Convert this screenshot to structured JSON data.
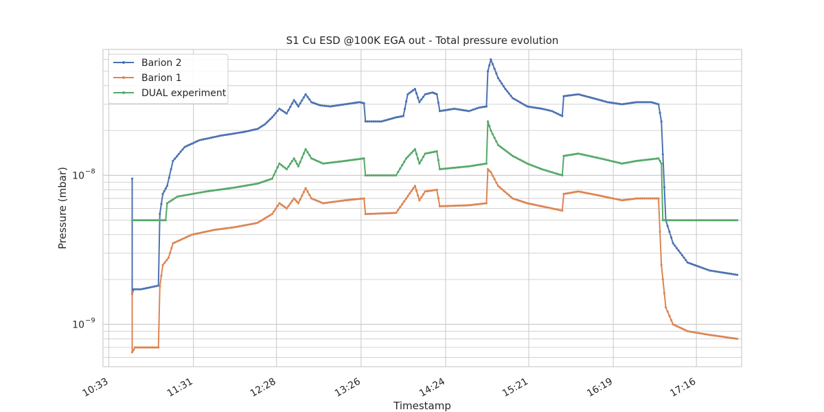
{
  "chart_data": {
    "type": "line",
    "title": "S1 Cu ESD @100K EGA out - Total pressure evolution",
    "xlabel": "Timestamp",
    "ylabel": "Pressure (mbar)",
    "yscale": "log",
    "ylim": [
      5.2e-10,
      7e-08
    ],
    "xlim": [
      "10:29",
      "17:47"
    ],
    "grid": true,
    "legend_position": "top-left",
    "x_ticks": [
      "10:33",
      "11:31",
      "12:28",
      "13:26",
      "14:24",
      "15:21",
      "16:19",
      "17:16"
    ],
    "y_ticks": [
      {
        "value": 1e-09,
        "base": "10",
        "exp": "−9"
      },
      {
        "value": 1e-08,
        "base": "10",
        "exp": "−8"
      }
    ],
    "series": [
      {
        "name": "Barion 2",
        "color": "#4c72b0",
        "points": [
          [
            "10:49",
            9.5e-09
          ],
          [
            "10:49",
            1.6e-09
          ],
          [
            "10:50",
            1.72e-09
          ],
          [
            "10:55",
            1.72e-09
          ],
          [
            "11:00",
            1.76e-09
          ],
          [
            "11:07",
            1.82e-09
          ],
          [
            "11:08",
            5.5e-09
          ],
          [
            "11:10",
            7.5e-09
          ],
          [
            "11:13",
            8.5e-09
          ],
          [
            "11:17",
            1.25e-08
          ],
          [
            "11:25",
            1.55e-08
          ],
          [
            "11:35",
            1.72e-08
          ],
          [
            "11:50",
            1.85e-08
          ],
          [
            "12:05",
            1.95e-08
          ],
          [
            "12:15",
            2.05e-08
          ],
          [
            "12:20",
            2.2e-08
          ],
          [
            "12:25",
            2.45e-08
          ],
          [
            "12:30",
            2.8e-08
          ],
          [
            "12:35",
            2.6e-08
          ],
          [
            "12:40",
            3.2e-08
          ],
          [
            "12:43",
            2.9e-08
          ],
          [
            "12:48",
            3.5e-08
          ],
          [
            "12:52",
            3.1e-08
          ],
          [
            "12:58",
            2.95e-08
          ],
          [
            "13:05",
            2.9e-08
          ],
          [
            "13:15",
            3e-08
          ],
          [
            "13:25",
            3.1e-08
          ],
          [
            "13:28",
            3.05e-08
          ],
          [
            "13:29",
            2.3e-08
          ],
          [
            "13:40",
            2.3e-08
          ],
          [
            "13:50",
            2.45e-08
          ],
          [
            "13:55",
            2.5e-08
          ],
          [
            "13:58",
            3.5e-08
          ],
          [
            "14:03",
            3.8e-08
          ],
          [
            "14:06",
            3.1e-08
          ],
          [
            "14:10",
            3.5e-08
          ],
          [
            "14:15",
            3.6e-08
          ],
          [
            "14:18",
            3.5e-08
          ],
          [
            "14:20",
            2.7e-08
          ],
          [
            "14:30",
            2.8e-08
          ],
          [
            "14:40",
            2.7e-08
          ],
          [
            "14:47",
            2.85e-08
          ],
          [
            "14:52",
            2.9e-08
          ],
          [
            "14:53",
            5e-08
          ],
          [
            "14:55",
            6e-08
          ],
          [
            "15:00",
            4.5e-08
          ],
          [
            "15:05",
            3.8e-08
          ],
          [
            "15:10",
            3.3e-08
          ],
          [
            "15:20",
            2.9e-08
          ],
          [
            "15:30",
            2.8e-08
          ],
          [
            "15:37",
            2.7e-08
          ],
          [
            "15:44",
            2.5e-08
          ],
          [
            "15:45",
            3.4e-08
          ],
          [
            "15:55",
            3.5e-08
          ],
          [
            "16:05",
            3.3e-08
          ],
          [
            "16:15",
            3.1e-08
          ],
          [
            "16:25",
            3e-08
          ],
          [
            "16:35",
            3.1e-08
          ],
          [
            "16:45",
            3.1e-08
          ],
          [
            "16:50",
            3e-08
          ],
          [
            "16:52",
            2.3e-08
          ],
          [
            "16:55",
            5e-09
          ],
          [
            "17:00",
            3.5e-09
          ],
          [
            "17:10",
            2.6e-09
          ],
          [
            "17:25",
            2.3e-09
          ],
          [
            "17:44",
            2.15e-09
          ]
        ]
      },
      {
        "name": "Barion 1",
        "color": "#dd8452",
        "points": [
          [
            "10:49",
            1.65e-09
          ],
          [
            "10:49",
            6.5e-10
          ],
          [
            "10:51",
            7e-10
          ],
          [
            "11:07",
            7e-10
          ],
          [
            "11:08",
            1.8e-09
          ],
          [
            "11:10",
            2.5e-09
          ],
          [
            "11:14",
            2.8e-09
          ],
          [
            "11:17",
            3.5e-09
          ],
          [
            "11:30",
            4e-09
          ],
          [
            "11:45",
            4.3e-09
          ],
          [
            "12:00",
            4.5e-09
          ],
          [
            "12:15",
            4.8e-09
          ],
          [
            "12:25",
            5.5e-09
          ],
          [
            "12:30",
            6.5e-09
          ],
          [
            "12:35",
            6e-09
          ],
          [
            "12:40",
            7e-09
          ],
          [
            "12:43",
            6.5e-09
          ],
          [
            "12:48",
            8.2e-09
          ],
          [
            "12:52",
            7e-09
          ],
          [
            "13:00",
            6.5e-09
          ],
          [
            "13:15",
            6.8e-09
          ],
          [
            "13:28",
            7e-09
          ],
          [
            "13:29",
            5.5e-09
          ],
          [
            "13:50",
            5.6e-09
          ],
          [
            "13:57",
            7e-09
          ],
          [
            "14:03",
            8.5e-09
          ],
          [
            "14:06",
            6.8e-09
          ],
          [
            "14:10",
            7.8e-09
          ],
          [
            "14:18",
            8e-09
          ],
          [
            "14:20",
            6.2e-09
          ],
          [
            "14:40",
            6.3e-09
          ],
          [
            "14:52",
            6.5e-09
          ],
          [
            "14:53",
            1.1e-08
          ],
          [
            "14:55",
            1.05e-08
          ],
          [
            "15:00",
            8.5e-09
          ],
          [
            "15:10",
            7e-09
          ],
          [
            "15:20",
            6.5e-09
          ],
          [
            "15:30",
            6.2e-09
          ],
          [
            "15:44",
            5.8e-09
          ],
          [
            "15:45",
            7.5e-09
          ],
          [
            "15:55",
            7.8e-09
          ],
          [
            "16:10",
            7.3e-09
          ],
          [
            "16:25",
            6.8e-09
          ],
          [
            "16:35",
            7e-09
          ],
          [
            "16:50",
            7e-09
          ],
          [
            "16:52",
            2.5e-09
          ],
          [
            "16:55",
            1.3e-09
          ],
          [
            "17:00",
            1e-09
          ],
          [
            "17:10",
            9e-10
          ],
          [
            "17:25",
            8.5e-10
          ],
          [
            "17:44",
            8e-10
          ]
        ]
      },
      {
        "name": "DUAL experiment",
        "color": "#55a868",
        "points": [
          [
            "10:49",
            5e-09
          ],
          [
            "11:12",
            5e-09
          ],
          [
            "11:13",
            6.5e-09
          ],
          [
            "11:20",
            7.2e-09
          ],
          [
            "11:40",
            7.8e-09
          ],
          [
            "12:00",
            8.3e-09
          ],
          [
            "12:15",
            8.8e-09
          ],
          [
            "12:25",
            9.5e-09
          ],
          [
            "12:30",
            1.2e-08
          ],
          [
            "12:35",
            1.1e-08
          ],
          [
            "12:40",
            1.3e-08
          ],
          [
            "12:43",
            1.15e-08
          ],
          [
            "12:48",
            1.5e-08
          ],
          [
            "12:52",
            1.3e-08
          ],
          [
            "13:00",
            1.2e-08
          ],
          [
            "13:15",
            1.25e-08
          ],
          [
            "13:28",
            1.3e-08
          ],
          [
            "13:29",
            1e-08
          ],
          [
            "13:50",
            1e-08
          ],
          [
            "13:57",
            1.3e-08
          ],
          [
            "14:03",
            1.5e-08
          ],
          [
            "14:06",
            1.2e-08
          ],
          [
            "14:10",
            1.4e-08
          ],
          [
            "14:18",
            1.45e-08
          ],
          [
            "14:20",
            1.1e-08
          ],
          [
            "14:40",
            1.15e-08
          ],
          [
            "14:52",
            1.2e-08
          ],
          [
            "14:53",
            2.3e-08
          ],
          [
            "14:55",
            2e-08
          ],
          [
            "15:00",
            1.6e-08
          ],
          [
            "15:10",
            1.35e-08
          ],
          [
            "15:20",
            1.2e-08
          ],
          [
            "15:30",
            1.1e-08
          ],
          [
            "15:44",
            1e-08
          ],
          [
            "15:45",
            1.35e-08
          ],
          [
            "15:55",
            1.4e-08
          ],
          [
            "16:10",
            1.3e-08
          ],
          [
            "16:25",
            1.2e-08
          ],
          [
            "16:35",
            1.25e-08
          ],
          [
            "16:50",
            1.3e-08
          ],
          [
            "16:52",
            1.2e-08
          ],
          [
            "16:53",
            5e-09
          ],
          [
            "17:44",
            5e-09
          ]
        ]
      }
    ]
  }
}
